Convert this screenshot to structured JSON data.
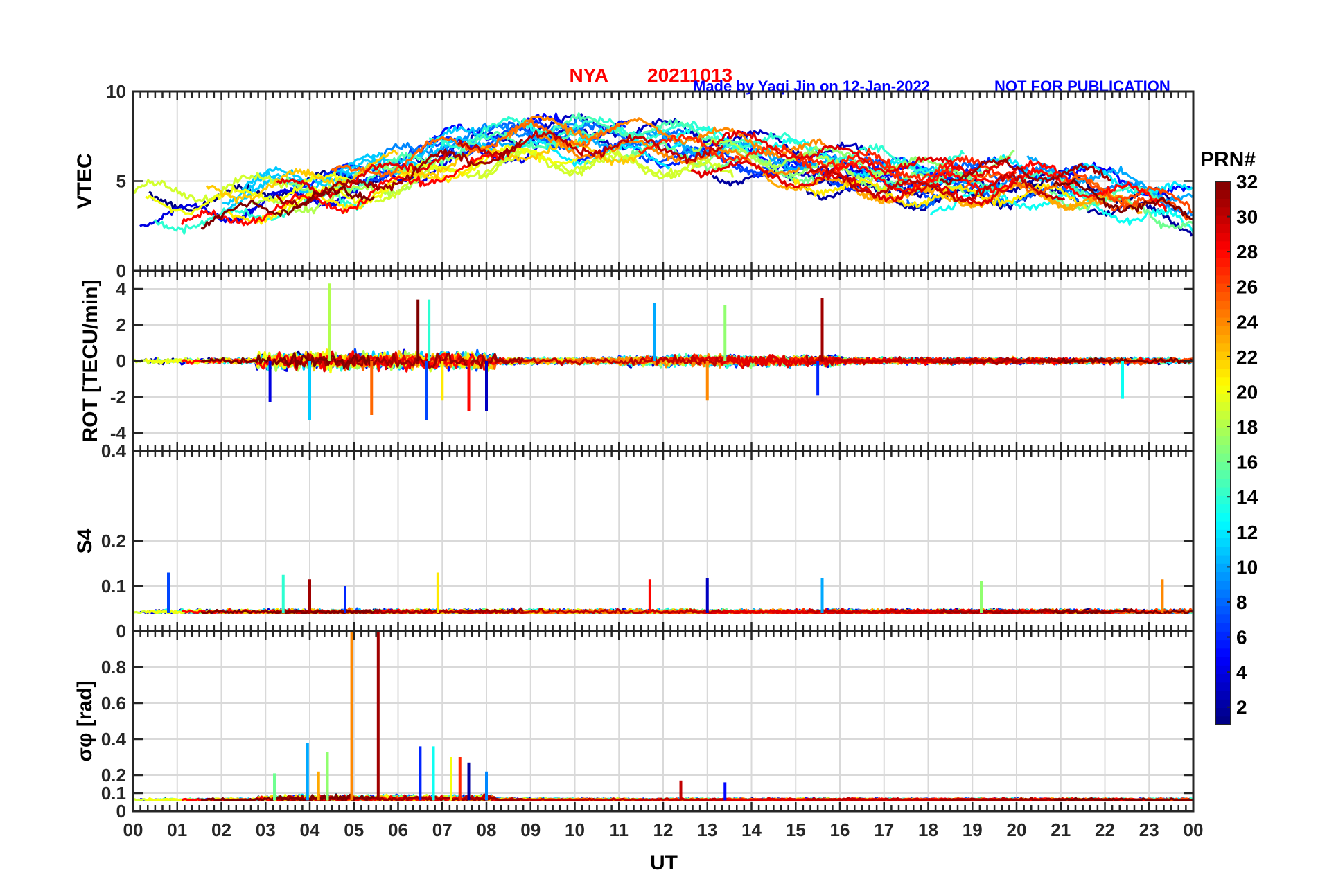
{
  "header": {
    "station": "NYA",
    "date": "20211013",
    "credit": "Made by Yaqi Jin on 12-Jan-2022",
    "notice": "NOT FOR PUBLICATION",
    "title_color": "#ff0000",
    "credit_color": "#0000ff"
  },
  "chart_data": {
    "type": "line",
    "xlabel": "UT",
    "x_ticks": [
      "00",
      "01",
      "02",
      "03",
      "04",
      "05",
      "06",
      "07",
      "08",
      "09",
      "10",
      "11",
      "12",
      "13",
      "14",
      "15",
      "16",
      "17",
      "18",
      "19",
      "20",
      "21",
      "22",
      "23",
      "00"
    ],
    "x_range_hours": [
      0,
      24
    ],
    "grid": true,
    "colormap": "jet",
    "panels": [
      {
        "id": "vtec",
        "ylabel": "VTEC",
        "ylim": [
          0,
          10
        ],
        "yticks": [
          "0",
          "5",
          "10"
        ],
        "trend_by_hour": [
          3.5,
          3.6,
          3.6,
          4.2,
          4.6,
          4.8,
          5.6,
          6.4,
          6.8,
          7.2,
          7.0,
          7.0,
          6.8,
          6.6,
          6.2,
          5.9,
          5.5,
          5.2,
          4.9,
          5.0,
          5.2,
          5.0,
          4.6,
          4.1,
          3.5
        ]
      },
      {
        "id": "rot",
        "ylabel": "ROT [TECU/min]",
        "ylim": [
          -5,
          5
        ],
        "yticks": [
          "-4",
          "-2",
          "0",
          "2",
          "4"
        ],
        "spikes": [
          [
            3.1,
            -2.3
          ],
          [
            4.0,
            -3.3
          ],
          [
            4.45,
            4.3
          ],
          [
            5.4,
            -3.0
          ],
          [
            6.45,
            3.4
          ],
          [
            6.65,
            -3.3
          ],
          [
            6.7,
            3.4
          ],
          [
            7.0,
            -2.2
          ],
          [
            7.6,
            -2.8
          ],
          [
            8.0,
            -2.8
          ],
          [
            11.8,
            3.2
          ],
          [
            13.4,
            3.1
          ],
          [
            13.0,
            -2.2
          ],
          [
            15.6,
            3.5
          ],
          [
            15.5,
            -1.9
          ],
          [
            22.4,
            -2.1
          ]
        ]
      },
      {
        "id": "s4",
        "ylabel": "S4",
        "ylim": [
          0,
          0.4
        ],
        "yticks": [
          "0",
          "0.1",
          "0.2"
        ],
        "spikes": [
          [
            0.8,
            0.13
          ],
          [
            3.4,
            0.125
          ],
          [
            6.9,
            0.13
          ],
          [
            11.7,
            0.115
          ],
          [
            13.0,
            0.118
          ],
          [
            15.6,
            0.118
          ],
          [
            19.2,
            0.112
          ],
          [
            23.3,
            0.115
          ],
          [
            4.0,
            0.115
          ],
          [
            4.8,
            0.1
          ]
        ]
      },
      {
        "id": "sigma_phi",
        "ylabel": "σφ [rad]",
        "ylim": [
          0,
          1.0
        ],
        "yticks": [
          "0",
          "0.1",
          "0.2",
          "0.4",
          "0.6",
          "0.8"
        ],
        "spikes": [
          [
            3.95,
            0.38
          ],
          [
            4.4,
            0.33
          ],
          [
            4.95,
            1.0
          ],
          [
            5.55,
            1.0
          ],
          [
            6.5,
            0.36
          ],
          [
            6.8,
            0.36
          ],
          [
            7.2,
            0.3
          ],
          [
            7.4,
            0.3
          ],
          [
            7.6,
            0.27
          ],
          [
            8.0,
            0.22
          ],
          [
            3.2,
            0.21
          ],
          [
            4.2,
            0.22
          ],
          [
            12.4,
            0.17
          ],
          [
            13.4,
            0.16
          ]
        ]
      }
    ],
    "colorbar": {
      "label": "PRN#",
      "range": [
        1,
        32
      ],
      "ticks": [
        "2",
        "4",
        "6",
        "8",
        "10",
        "12",
        "14",
        "16",
        "18",
        "20",
        "22",
        "24",
        "26",
        "28",
        "30",
        "32"
      ],
      "legend_position": "right"
    },
    "series_prn": [
      1,
      2,
      3,
      4,
      5,
      6,
      7,
      8,
      9,
      10,
      11,
      12,
      13,
      14,
      15,
      16,
      17,
      18,
      19,
      20,
      21,
      22,
      23,
      24,
      25,
      26,
      27,
      28,
      29,
      30,
      31,
      32
    ]
  }
}
